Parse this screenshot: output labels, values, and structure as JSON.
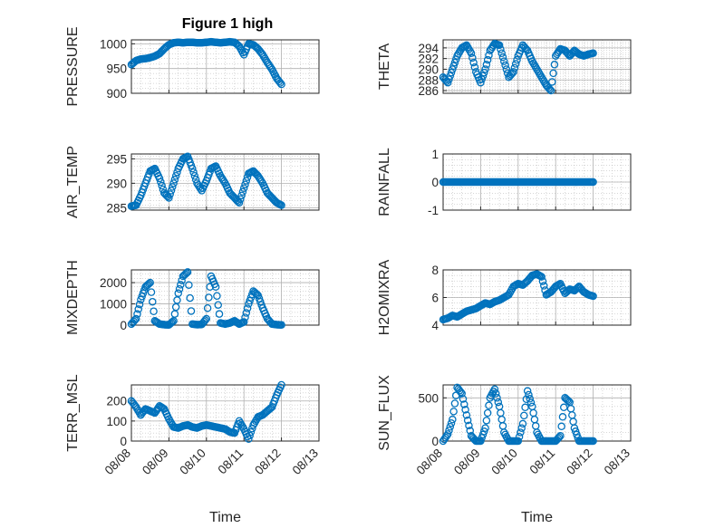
{
  "figure": {
    "title": "Figure 1 high"
  },
  "colors": {
    "marker": "#0072BD",
    "axis": "#262626",
    "grid": "#b0b0b0"
  },
  "chart_data": [
    {
      "type": "scatter",
      "ylabel": "PRESSURE",
      "xlabel": "",
      "x_ticks": [],
      "ylim": [
        900,
        1008
      ],
      "yticks": [
        900,
        950,
        1000
      ],
      "grid": true,
      "x": [
        "08/08 00:00",
        "08/08 03:00",
        "08/08 06:00",
        "08/08 09:00",
        "08/08 12:00",
        "08/08 15:00",
        "08/08 18:00",
        "08/08 21:00",
        "08/09 00:00",
        "08/09 03:00",
        "08/09 06:00",
        "08/09 09:00",
        "08/09 12:00",
        "08/09 15:00",
        "08/09 18:00",
        "08/09 21:00",
        "08/10 00:00",
        "08/10 03:00",
        "08/10 06:00",
        "08/10 09:00",
        "08/10 12:00",
        "08/10 15:00",
        "08/10 18:00",
        "08/10 21:00",
        "08/11 00:00",
        "08/11 03:00",
        "08/11 06:00",
        "08/11 09:00",
        "08/11 12:00",
        "08/11 15:00",
        "08/11 18:00",
        "08/11 21:00",
        "08/12 00:00"
      ],
      "y": [
        958,
        966,
        969,
        970,
        972,
        975,
        980,
        990,
        998,
        1002,
        1003,
        1002,
        1003,
        1003,
        1002,
        1002,
        1003,
        1004,
        1003,
        1002,
        1003,
        1004,
        1003,
        995,
        978,
        1000,
        998,
        990,
        978,
        962,
        948,
        930,
        918
      ]
    },
    {
      "type": "scatter",
      "ylabel": "THETA",
      "xlabel": "",
      "x_ticks": [],
      "ylim": [
        285.5,
        295.5
      ],
      "yticks": [
        286,
        288,
        290,
        292,
        294
      ],
      "grid": true,
      "x": [
        "08/08 00:00",
        "08/08 03:00",
        "08/08 06:00",
        "08/08 09:00",
        "08/08 12:00",
        "08/08 15:00",
        "08/08 18:00",
        "08/08 21:00",
        "08/09 00:00",
        "08/09 03:00",
        "08/09 06:00",
        "08/09 09:00",
        "08/09 12:00",
        "08/09 15:00",
        "08/09 18:00",
        "08/09 21:00",
        "08/10 00:00",
        "08/10 03:00",
        "08/10 06:00",
        "08/10 09:00",
        "08/10 12:00",
        "08/10 15:00",
        "08/10 18:00",
        "08/10 21:00",
        "08/11 00:00",
        "08/11 03:00",
        "08/11 06:00",
        "08/11 09:00",
        "08/11 12:00",
        "08/11 15:00",
        "08/11 18:00",
        "08/11 21:00",
        "08/12 00:00"
      ],
      "y": [
        288.5,
        287.5,
        290,
        292.5,
        294,
        294.5,
        293,
        289.5,
        287.5,
        290,
        293.5,
        294.8,
        294.5,
        291.5,
        288.5,
        289.5,
        292.5,
        294.5,
        293.5,
        291.5,
        290,
        288.5,
        287,
        286,
        292.5,
        293.8,
        293.5,
        292.5,
        293.5,
        292.8,
        292.5,
        292.8,
        293
      ]
    },
    {
      "type": "scatter",
      "ylabel": "AIR_TEMP",
      "xlabel": "",
      "x_ticks": [],
      "ylim": [
        284.5,
        296
      ],
      "yticks": [
        285,
        290,
        295
      ],
      "grid": true,
      "x": [
        "08/08 00:00",
        "08/08 03:00",
        "08/08 06:00",
        "08/08 09:00",
        "08/08 12:00",
        "08/08 15:00",
        "08/08 18:00",
        "08/08 21:00",
        "08/09 00:00",
        "08/09 03:00",
        "08/09 06:00",
        "08/09 09:00",
        "08/09 12:00",
        "08/09 15:00",
        "08/09 18:00",
        "08/09 21:00",
        "08/10 00:00",
        "08/10 03:00",
        "08/10 06:00",
        "08/10 09:00",
        "08/10 12:00",
        "08/10 15:00",
        "08/10 18:00",
        "08/10 21:00",
        "08/11 00:00",
        "08/11 03:00",
        "08/11 06:00",
        "08/11 09:00",
        "08/11 12:00",
        "08/11 15:00",
        "08/11 18:00",
        "08/11 21:00",
        "08/12 00:00"
      ],
      "y": [
        285.3,
        285.5,
        287.5,
        290,
        292.5,
        293,
        291,
        288,
        287,
        290,
        293,
        295,
        295.5,
        293,
        290,
        288.5,
        290.5,
        293,
        293.5,
        291.5,
        290,
        288,
        287,
        286,
        289,
        292,
        292.5,
        291.5,
        290,
        288,
        287,
        286,
        285.5
      ]
    },
    {
      "type": "scatter",
      "ylabel": "RAINFALL",
      "xlabel": "",
      "x_ticks": [],
      "ylim": [
        -1,
        1
      ],
      "yticks": [
        -1,
        0,
        1
      ],
      "grid": true,
      "x": [
        "08/08 00:00",
        "08/08 03:00",
        "08/08 06:00",
        "08/08 09:00",
        "08/08 12:00",
        "08/08 15:00",
        "08/08 18:00",
        "08/08 21:00",
        "08/09 00:00",
        "08/09 03:00",
        "08/09 06:00",
        "08/09 09:00",
        "08/09 12:00",
        "08/09 15:00",
        "08/09 18:00",
        "08/09 21:00",
        "08/10 00:00",
        "08/10 03:00",
        "08/10 06:00",
        "08/10 09:00",
        "08/10 12:00",
        "08/10 15:00",
        "08/10 18:00",
        "08/10 21:00",
        "08/11 00:00",
        "08/11 03:00",
        "08/11 06:00",
        "08/11 09:00",
        "08/11 12:00",
        "08/11 15:00",
        "08/11 18:00",
        "08/11 21:00",
        "08/12 00:00"
      ],
      "y": [
        0,
        0,
        0,
        0,
        0,
        0,
        0,
        0,
        0,
        0,
        0,
        0,
        0,
        0,
        0,
        0,
        0,
        0,
        0,
        0,
        0,
        0,
        0,
        0,
        0,
        0,
        0,
        0,
        0,
        0,
        0,
        0,
        0
      ]
    },
    {
      "type": "scatter",
      "ylabel": "MIXDEPTH",
      "xlabel": "",
      "x_ticks": [],
      "ylim": [
        0,
        2600
      ],
      "yticks": [
        0,
        1000,
        2000
      ],
      "grid": true,
      "x": [
        "08/08 00:00",
        "08/08 03:00",
        "08/08 06:00",
        "08/08 09:00",
        "08/08 12:00",
        "08/08 15:00",
        "08/08 18:00",
        "08/08 21:00",
        "08/09 00:00",
        "08/09 03:00",
        "08/09 06:00",
        "08/09 09:00",
        "08/09 12:00",
        "08/09 15:00",
        "08/09 18:00",
        "08/09 21:00",
        "08/10 00:00",
        "08/10 03:00",
        "08/10 06:00",
        "08/10 09:00",
        "08/10 12:00",
        "08/10 15:00",
        "08/10 18:00",
        "08/10 21:00",
        "08/11 00:00",
        "08/11 03:00",
        "08/11 06:00",
        "08/11 09:00",
        "08/11 12:00",
        "08/11 15:00",
        "08/11 18:00",
        "08/11 21:00",
        "08/12 00:00"
      ],
      "y": [
        50,
        300,
        1200,
        1800,
        2000,
        200,
        50,
        20,
        10,
        200,
        1500,
        2300,
        2500,
        50,
        20,
        30,
        300,
        2300,
        1800,
        100,
        50,
        100,
        200,
        50,
        150,
        1000,
        1600,
        1400,
        800,
        300,
        50,
        20,
        10
      ]
    },
    {
      "type": "scatter",
      "ylabel": "H2OMIXRA",
      "xlabel": "",
      "x_ticks": [],
      "ylim": [
        4,
        8
      ],
      "yticks": [
        4,
        6,
        8
      ],
      "grid": true,
      "x": [
        "08/08 00:00",
        "08/08 03:00",
        "08/08 06:00",
        "08/08 09:00",
        "08/08 12:00",
        "08/08 15:00",
        "08/08 18:00",
        "08/08 21:00",
        "08/09 00:00",
        "08/09 03:00",
        "08/09 06:00",
        "08/09 09:00",
        "08/09 12:00",
        "08/09 15:00",
        "08/09 18:00",
        "08/09 21:00",
        "08/10 00:00",
        "08/10 03:00",
        "08/10 06:00",
        "08/10 09:00",
        "08/10 12:00",
        "08/10 15:00",
        "08/10 18:00",
        "08/10 21:00",
        "08/11 00:00",
        "08/11 03:00",
        "08/11 06:00",
        "08/11 09:00",
        "08/11 12:00",
        "08/11 15:00",
        "08/11 18:00",
        "08/11 21:00",
        "08/12 00:00"
      ],
      "y": [
        4.4,
        4.5,
        4.7,
        4.6,
        4.8,
        5.0,
        5.1,
        5.2,
        5.4,
        5.6,
        5.5,
        5.7,
        5.8,
        6.0,
        6.2,
        6.8,
        7.0,
        6.9,
        7.2,
        7.6,
        7.7,
        7.5,
        6.2,
        6.4,
        6.8,
        7.0,
        6.3,
        6.6,
        6.5,
        6.8,
        6.4,
        6.2,
        6.1
      ]
    },
    {
      "type": "scatter",
      "ylabel": "TERR_MSL",
      "xlabel": "Time",
      "x_ticks": [
        "08/08",
        "08/09",
        "08/10",
        "08/11",
        "08/12",
        "08/13"
      ],
      "ylim": [
        0,
        280
      ],
      "yticks": [
        0,
        100,
        200
      ],
      "grid": true,
      "x": [
        "08/08 00:00",
        "08/08 03:00",
        "08/08 06:00",
        "08/08 09:00",
        "08/08 12:00",
        "08/08 15:00",
        "08/08 18:00",
        "08/08 21:00",
        "08/09 00:00",
        "08/09 03:00",
        "08/09 06:00",
        "08/09 09:00",
        "08/09 12:00",
        "08/09 15:00",
        "08/09 18:00",
        "08/09 21:00",
        "08/10 00:00",
        "08/10 03:00",
        "08/10 06:00",
        "08/10 09:00",
        "08/10 12:00",
        "08/10 15:00",
        "08/10 18:00",
        "08/10 21:00",
        "08/11 00:00",
        "08/11 03:00",
        "08/11 06:00",
        "08/11 09:00",
        "08/11 12:00",
        "08/11 15:00",
        "08/11 18:00",
        "08/11 21:00",
        "08/12 00:00"
      ],
      "y": [
        200,
        170,
        130,
        160,
        150,
        140,
        175,
        160,
        110,
        70,
        65,
        75,
        80,
        70,
        65,
        75,
        80,
        75,
        70,
        65,
        60,
        45,
        40,
        100,
        60,
        10,
        80,
        120,
        130,
        150,
        170,
        230,
        280
      ]
    },
    {
      "type": "scatter",
      "ylabel": "SUN_FLUX",
      "xlabel": "Time",
      "x_ticks": [
        "08/08",
        "08/09",
        "08/10",
        "08/11",
        "08/12",
        "08/13"
      ],
      "ylim": [
        0,
        650
      ],
      "yticks": [
        0,
        500
      ],
      "grid": true,
      "x": [
        "08/08 00:00",
        "08/08 03:00",
        "08/08 06:00",
        "08/08 09:00",
        "08/08 12:00",
        "08/08 15:00",
        "08/08 18:00",
        "08/08 21:00",
        "08/09 00:00",
        "08/09 03:00",
        "08/09 06:00",
        "08/09 09:00",
        "08/09 12:00",
        "08/09 15:00",
        "08/09 18:00",
        "08/09 21:00",
        "08/10 00:00",
        "08/10 03:00",
        "08/10 06:00",
        "08/10 09:00",
        "08/10 12:00",
        "08/10 15:00",
        "08/10 18:00",
        "08/10 21:00",
        "08/11 00:00",
        "08/11 03:00",
        "08/11 06:00",
        "08/11 09:00",
        "08/11 12:00",
        "08/11 15:00",
        "08/11 18:00",
        "08/11 21:00",
        "08/12 00:00"
      ],
      "y": [
        0,
        80,
        250,
        620,
        550,
        300,
        60,
        0,
        0,
        150,
        500,
        600,
        400,
        100,
        0,
        0,
        0,
        200,
        580,
        400,
        100,
        0,
        0,
        0,
        0,
        60,
        500,
        450,
        150,
        0,
        0,
        0,
        0
      ]
    }
  ]
}
